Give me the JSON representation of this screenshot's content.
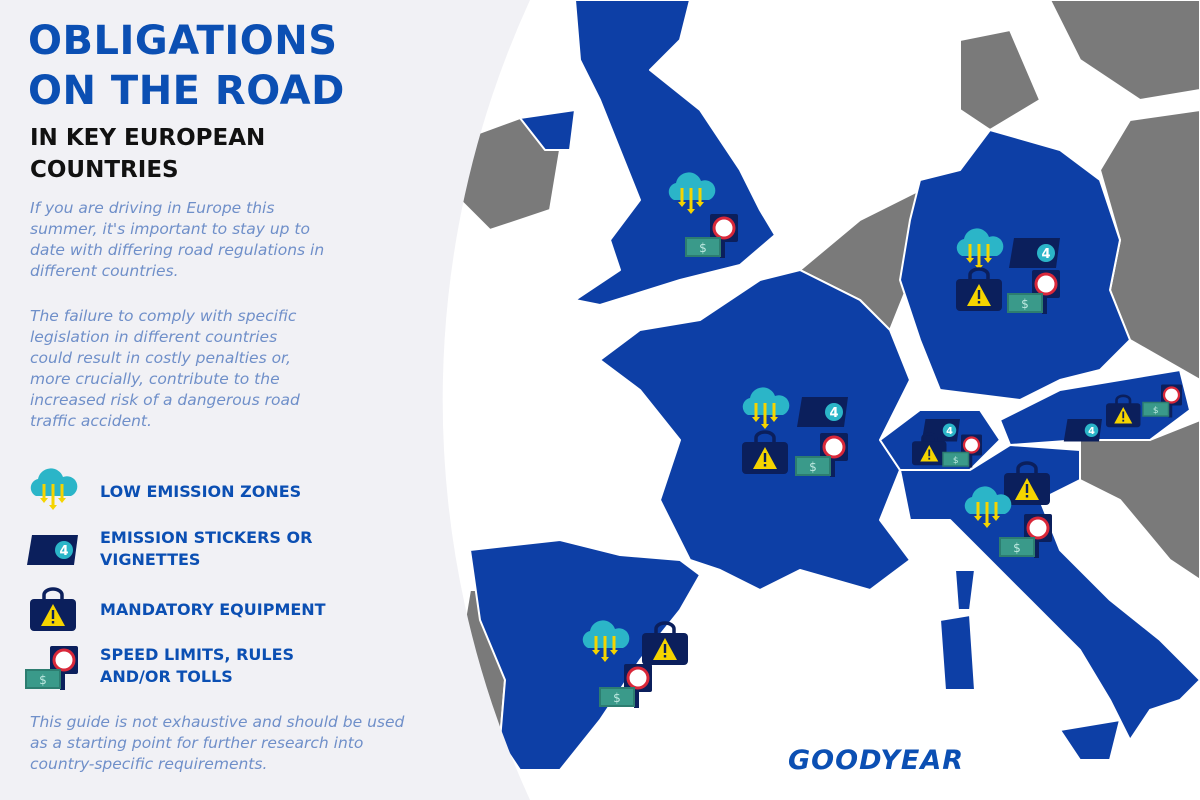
{
  "header": {
    "title_line1": "OBLIGATIONS",
    "title_line2": "ON THE ROAD",
    "subtitle_line1": "IN KEY EUROPEAN",
    "subtitle_line2": "COUNTRIES"
  },
  "intro": {
    "paragraph1": "If you are driving in Europe this summer, it's important to stay up to date with differing road regulations in different countries.",
    "paragraph2": "The failure to comply with specific legislation in different countries could result in costly penalties or, more crucially, contribute to the increased risk of a dangerous road traffic accident."
  },
  "legend": [
    {
      "icon": "low-emission-zone-icon",
      "label": "LOW EMISSION ZONES"
    },
    {
      "icon": "emission-sticker-icon",
      "label": "EMISSION STICKERS OR VIGNETTES"
    },
    {
      "icon": "mandatory-equipment-icon",
      "label": "MANDATORY EQUIPMENT"
    },
    {
      "icon": "speed-limit-toll-icon",
      "label": "SPEED LIMITS, RULES AND/OR TOLLS"
    }
  ],
  "sticker_number": "4",
  "disclaimer": "This guide is not exhaustive and should be used as a starting point for further research into country-specific requirements.",
  "brand": "GOODYEAR",
  "colors": {
    "highlighted_country": "#0d3fa6",
    "other_country": "#7a7a7a",
    "panel": "#f1f1f5",
    "heading": "#0b4fb3",
    "icon_navy": "#0b1f5c",
    "icon_teal": "#2bb5c8",
    "icon_yellow": "#f5d400"
  },
  "map_markers": [
    {
      "icons": [
        "lez",
        "speed"
      ]
    },
    {
      "icons": [
        "lez",
        "sticker",
        "equipment",
        "speed"
      ]
    },
    {
      "icons": [
        "lez",
        "sticker",
        "equipment",
        "speed"
      ]
    },
    {
      "icons": [
        "sticker",
        "equipment",
        "speed"
      ]
    },
    {
      "icons": [
        "sticker",
        "equipment",
        "speed"
      ]
    },
    {
      "icons": [
        "equipment",
        "lez",
        "speed"
      ]
    },
    {
      "icons": [
        "lez",
        "equipment",
        "speed"
      ]
    }
  ]
}
